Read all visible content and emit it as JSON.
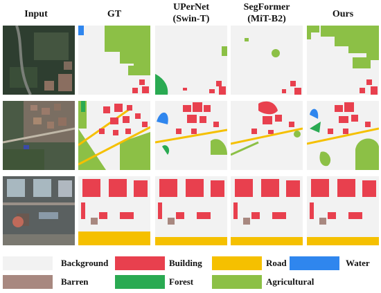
{
  "columns": {
    "input": "Input",
    "gt": "GT",
    "upernet_l1": "UPerNet",
    "upernet_l2": "(Swin-T)",
    "segformer_l1": "SegFormer",
    "segformer_l2": "(MiT-B2)",
    "ours": "Ours"
  },
  "legend": {
    "background": "Background",
    "building": "Building",
    "road": "Road",
    "water": "Water",
    "barren": "Barren",
    "forest": "Forest",
    "agricultural": "Agricultural"
  },
  "colors": {
    "background": "#f2f2f2",
    "building": "#e8404e",
    "road": "#f5c000",
    "water": "#2f86ee",
    "barren": "#a88880",
    "forest": "#2aaa52",
    "agricultural": "#8cc046"
  }
}
